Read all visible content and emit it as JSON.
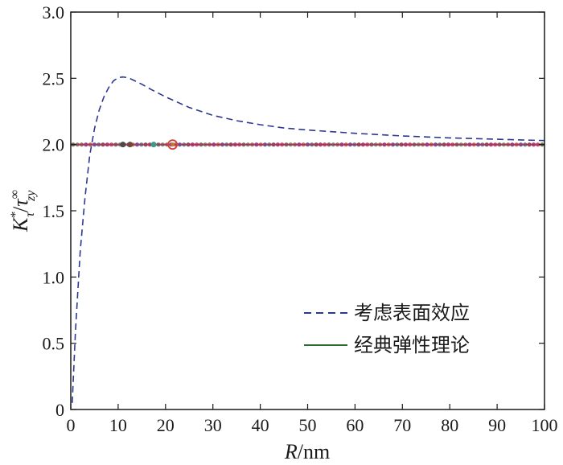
{
  "chart_data": {
    "type": "line",
    "xlabel_parts": {
      "var": "R",
      "unit": "/nm"
    },
    "ylabel_parts": {
      "k": "K",
      "k_sup": "*",
      "k_sub": "τ",
      "slash": "/",
      "tau": "τ",
      "tau_sup": "∞",
      "tau_sub": "zy"
    },
    "xlim": [
      0,
      100
    ],
    "ylim": [
      0,
      3.0
    ],
    "x_ticks": [
      0,
      10,
      20,
      30,
      40,
      50,
      60,
      70,
      80,
      90,
      100
    ],
    "x_tick_labels": [
      "0",
      "10",
      "20",
      "30",
      "40",
      "50",
      "60",
      "70",
      "80",
      "90",
      "100"
    ],
    "y_ticks": [
      0,
      0.5,
      1.0,
      1.5,
      2.0,
      2.5,
      3.0
    ],
    "y_tick_labels": [
      "0",
      "0.5",
      "1.0",
      "1.5",
      "2.0",
      "2.5",
      "3.0"
    ],
    "grid": false,
    "legend_position": "lower-right",
    "series": [
      {
        "name": "考虑表面效应",
        "style": "dashed",
        "color": "#2b3a8f",
        "x": [
          0.3,
          1,
          2,
          3,
          4,
          5,
          6,
          7,
          8,
          9,
          10,
          11,
          12,
          13,
          15,
          17,
          20,
          25,
          30,
          35,
          40,
          45,
          50,
          60,
          70,
          80,
          90,
          95,
          100
        ],
        "y": [
          0.05,
          0.6,
          1.2,
          1.6,
          1.92,
          2.12,
          2.26,
          2.36,
          2.43,
          2.48,
          2.505,
          2.51,
          2.505,
          2.49,
          2.455,
          2.415,
          2.36,
          2.28,
          2.22,
          2.18,
          2.15,
          2.125,
          2.11,
          2.085,
          2.065,
          2.05,
          2.04,
          2.035,
          2.03
        ]
      },
      {
        "name": "经典弹性理论",
        "style": "solid",
        "color": "#2e6b2e",
        "x": [
          0,
          100
        ],
        "y": [
          2.0,
          2.0
        ]
      }
    ],
    "marker_palette": [
      "#4a7a3a",
      "#7a3a8a",
      "#3a8a7a",
      "#c44a4a",
      "#8a7a3a",
      "#3a5a9a",
      "#9a3a5a",
      "#5a9a5a",
      "#c46a2a",
      "#6a4a2a"
    ],
    "highlight_points": [
      {
        "x": 11,
        "y": 2.0,
        "color": "#4a4a4a"
      },
      {
        "x": 12.5,
        "y": 2.0,
        "color": "#6a4a3a"
      },
      {
        "x": 17.5,
        "y": 2.0,
        "color": "#3a9a8a"
      },
      {
        "x": 21.5,
        "y": 2.0,
        "color": "#d04040",
        "ring": true
      }
    ]
  }
}
